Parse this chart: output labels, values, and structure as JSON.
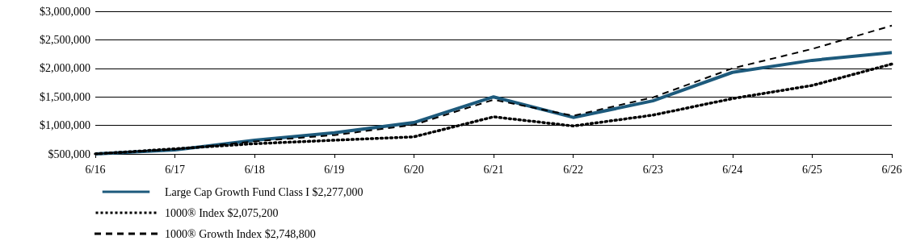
{
  "chart_data": {
    "type": "line",
    "categories": [
      "6/16",
      "6/17",
      "6/18",
      "6/19",
      "6/20",
      "6/21",
      "6/22",
      "6/23",
      "6/24",
      "6/25",
      "6/26"
    ],
    "series": [
      {
        "name": "Large Cap Growth Fund Class I $2,277,000",
        "color": "#1d5a7c",
        "line_style": "solid",
        "values": [
          500000,
          570000,
          740000,
          870000,
          1050000,
          1500000,
          1140000,
          1430000,
          1930000,
          2140000,
          2277000
        ]
      },
      {
        "name": "1000® Index $2,075,200",
        "color": "#000000",
        "line_style": "dotted",
        "values": [
          500000,
          590000,
          680000,
          740000,
          800000,
          1150000,
          990000,
          1180000,
          1470000,
          1700000,
          2075200
        ]
      },
      {
        "name": "1000® Growth Index $2,748,800",
        "color": "#000000",
        "line_style": "dashed",
        "values": [
          500000,
          580000,
          720000,
          830000,
          1010000,
          1450000,
          1170000,
          1490000,
          2000000,
          2340000,
          2748800
        ]
      }
    ],
    "ylim": [
      500000,
      3000000
    ],
    "yticks": [
      {
        "value": 500000,
        "label": "$500,000"
      },
      {
        "value": 1000000,
        "label": "$1,000,000"
      },
      {
        "value": 1500000,
        "label": "$1,500,000"
      },
      {
        "value": 2000000,
        "label": "$2,000,000"
      },
      {
        "value": 2500000,
        "label": "$2,500,000"
      },
      {
        "value": 3000000,
        "label": "$3,000,000"
      }
    ],
    "grid": "y",
    "legend": "bottom",
    "marker": "none"
  }
}
